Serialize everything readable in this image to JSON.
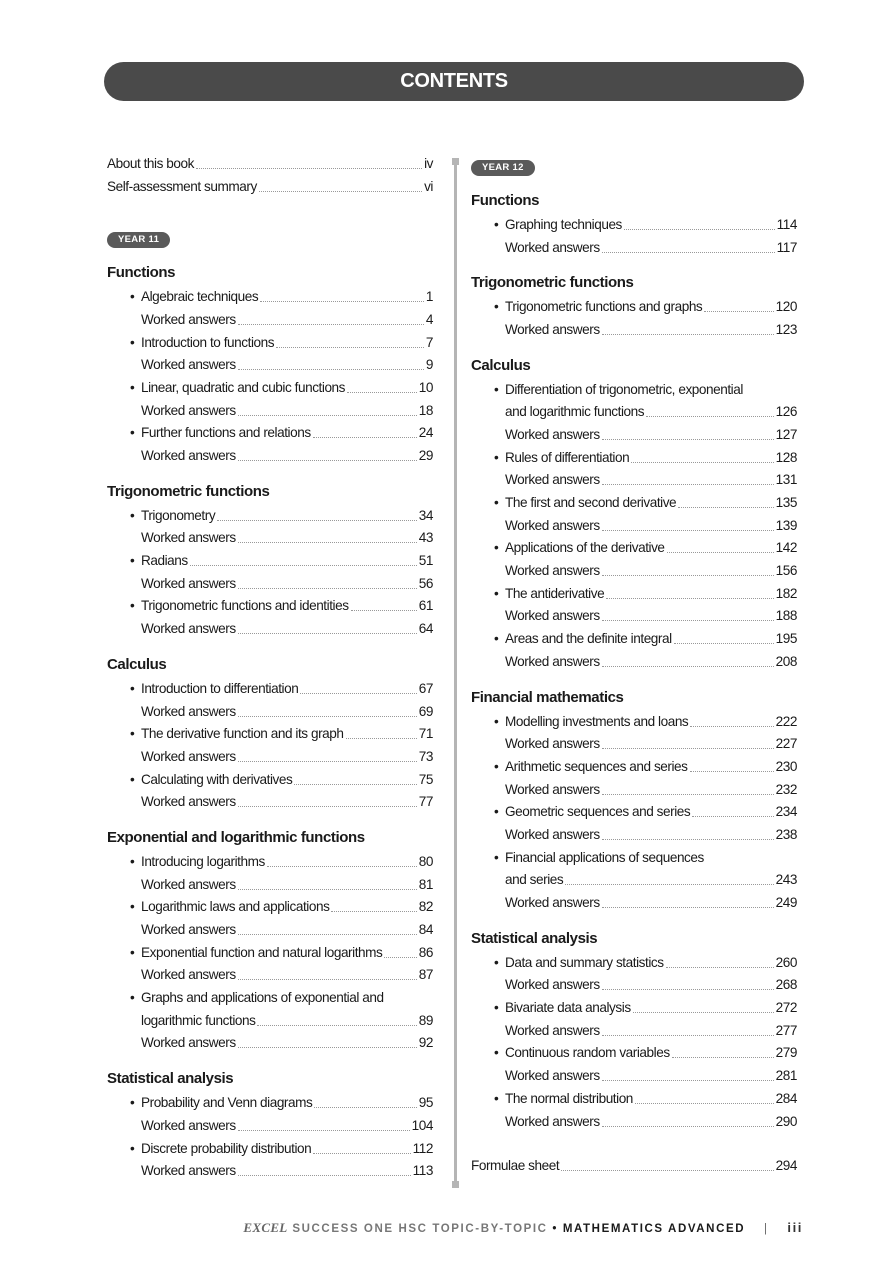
{
  "header": {
    "title": "CONTENTS"
  },
  "left": {
    "intro": [
      {
        "text": "About this book",
        "page": "iv"
      },
      {
        "text": "Self-assessment summary",
        "page": "vi"
      }
    ],
    "year_label": "YEAR 11",
    "sections": [
      {
        "title": "Functions",
        "entries": [
          {
            "lines": [
              "Algebraic techniques"
            ],
            "page": "1",
            "bullet": true
          },
          {
            "lines": [
              "Worked answers"
            ],
            "page": "4"
          },
          {
            "lines": [
              "Introduction to functions"
            ],
            "page": "7",
            "bullet": true
          },
          {
            "lines": [
              "Worked answers"
            ],
            "page": "9"
          },
          {
            "lines": [
              "Linear, quadratic and cubic functions"
            ],
            "page": "10",
            "bullet": true
          },
          {
            "lines": [
              "Worked answers"
            ],
            "page": "18"
          },
          {
            "lines": [
              "Further functions and relations"
            ],
            "page": "24",
            "bullet": true
          },
          {
            "lines": [
              "Worked answers"
            ],
            "page": "29"
          }
        ]
      },
      {
        "title": "Trigonometric functions",
        "entries": [
          {
            "lines": [
              "Trigonometry"
            ],
            "page": "34",
            "bullet": true
          },
          {
            "lines": [
              "Worked answers"
            ],
            "page": "43"
          },
          {
            "lines": [
              "Radians"
            ],
            "page": "51",
            "bullet": true
          },
          {
            "lines": [
              "Worked answers"
            ],
            "page": "56"
          },
          {
            "lines": [
              "Trigonometric functions and identities"
            ],
            "page": "61",
            "bullet": true
          },
          {
            "lines": [
              "Worked answers"
            ],
            "page": "64"
          }
        ]
      },
      {
        "title": "Calculus",
        "entries": [
          {
            "lines": [
              "Introduction to differentiation"
            ],
            "page": "67",
            "bullet": true
          },
          {
            "lines": [
              "Worked answers"
            ],
            "page": "69"
          },
          {
            "lines": [
              "The derivative function and its graph"
            ],
            "page": "71",
            "bullet": true
          },
          {
            "lines": [
              "Worked answers"
            ],
            "page": "73"
          },
          {
            "lines": [
              "Calculating with derivatives"
            ],
            "page": "75",
            "bullet": true
          },
          {
            "lines": [
              "Worked answers"
            ],
            "page": "77"
          }
        ]
      },
      {
        "title": "Exponential and logarithmic functions",
        "entries": [
          {
            "lines": [
              "Introducing logarithms"
            ],
            "page": "80",
            "bullet": true
          },
          {
            "lines": [
              "Worked answers"
            ],
            "page": "81"
          },
          {
            "lines": [
              "Logarithmic laws and applications"
            ],
            "page": "82",
            "bullet": true
          },
          {
            "lines": [
              "Worked answers"
            ],
            "page": "84"
          },
          {
            "lines": [
              "Exponential function and natural logarithms"
            ],
            "page": "86",
            "bullet": true
          },
          {
            "lines": [
              "Worked answers"
            ],
            "page": "87"
          },
          {
            "lines": [
              "Graphs and applications of exponential and",
              "logarithmic functions"
            ],
            "page": "89",
            "bullet": true
          },
          {
            "lines": [
              "Worked answers"
            ],
            "page": "92"
          }
        ]
      },
      {
        "title": "Statistical analysis",
        "entries": [
          {
            "lines": [
              "Probability and Venn diagrams"
            ],
            "page": "95",
            "bullet": true
          },
          {
            "lines": [
              "Worked answers"
            ],
            "page": "104"
          },
          {
            "lines": [
              "Discrete probability distribution"
            ],
            "page": "112",
            "bullet": true
          },
          {
            "lines": [
              "Worked answers"
            ],
            "page": "113"
          }
        ]
      }
    ]
  },
  "right": {
    "year_label": "YEAR 12",
    "sections": [
      {
        "title": "Functions",
        "entries": [
          {
            "lines": [
              "Graphing techniques"
            ],
            "page": "114",
            "bullet": true
          },
          {
            "lines": [
              "Worked answers"
            ],
            "page": "117"
          }
        ]
      },
      {
        "title": "Trigonometric functions",
        "entries": [
          {
            "lines": [
              "Trigonometric functions and graphs"
            ],
            "page": "120",
            "bullet": true
          },
          {
            "lines": [
              "Worked answers"
            ],
            "page": "123"
          }
        ]
      },
      {
        "title": "Calculus",
        "entries": [
          {
            "lines": [
              "Differentiation of trigonometric, exponential",
              "and logarithmic functions"
            ],
            "page": "126",
            "bullet": true
          },
          {
            "lines": [
              "Worked answers"
            ],
            "page": "127"
          },
          {
            "lines": [
              "Rules of differentiation"
            ],
            "page": "128",
            "bullet": true
          },
          {
            "lines": [
              "Worked answers"
            ],
            "page": "131"
          },
          {
            "lines": [
              "The first and second derivative"
            ],
            "page": "135",
            "bullet": true
          },
          {
            "lines": [
              "Worked answers"
            ],
            "page": "139"
          },
          {
            "lines": [
              "Applications of the derivative"
            ],
            "page": "142",
            "bullet": true
          },
          {
            "lines": [
              "Worked answers"
            ],
            "page": "156"
          },
          {
            "lines": [
              "The antiderivative"
            ],
            "page": "182",
            "bullet": true
          },
          {
            "lines": [
              "Worked answers"
            ],
            "page": "188"
          },
          {
            "lines": [
              "Areas and the definite integral"
            ],
            "page": "195",
            "bullet": true
          },
          {
            "lines": [
              "Worked answers"
            ],
            "page": "208"
          }
        ]
      },
      {
        "title": "Financial mathematics",
        "entries": [
          {
            "lines": [
              "Modelling investments and loans"
            ],
            "page": "222",
            "bullet": true
          },
          {
            "lines": [
              "Worked answers"
            ],
            "page": "227"
          },
          {
            "lines": [
              "Arithmetic sequences and series"
            ],
            "page": "230",
            "bullet": true
          },
          {
            "lines": [
              "Worked answers"
            ],
            "page": "232"
          },
          {
            "lines": [
              "Geometric sequences and series"
            ],
            "page": "234",
            "bullet": true
          },
          {
            "lines": [
              "Worked answers"
            ],
            "page": "238"
          },
          {
            "lines": [
              "Financial applications of sequences",
              "and series"
            ],
            "page": "243",
            "bullet": true
          },
          {
            "lines": [
              "Worked answers"
            ],
            "page": "249"
          }
        ]
      },
      {
        "title": "Statistical analysis",
        "entries": [
          {
            "lines": [
              "Data and summary statistics"
            ],
            "page": "260",
            "bullet": true
          },
          {
            "lines": [
              "Worked answers"
            ],
            "page": "268"
          },
          {
            "lines": [
              "Bivariate data analysis"
            ],
            "page": "272",
            "bullet": true
          },
          {
            "lines": [
              "Worked answers"
            ],
            "page": "277"
          },
          {
            "lines": [
              "Continuous random variables"
            ],
            "page": "279",
            "bullet": true
          },
          {
            "lines": [
              "Worked answers"
            ],
            "page": "281"
          },
          {
            "lines": [
              "The normal distribution"
            ],
            "page": "284",
            "bullet": true
          },
          {
            "lines": [
              "Worked answers"
            ],
            "page": "290"
          }
        ]
      }
    ],
    "outro": [
      {
        "text": "Formulae sheet",
        "page": "294"
      }
    ]
  },
  "footer": {
    "brand": "EXCEL",
    "series": "SUCCESS ONE HSC TOPIC-BY-TOPIC",
    "separator_dot": "•",
    "subject": "MATHEMATICS ADVANCED",
    "divider": "|",
    "page": "iii"
  },
  "bullet_glyph": "•"
}
